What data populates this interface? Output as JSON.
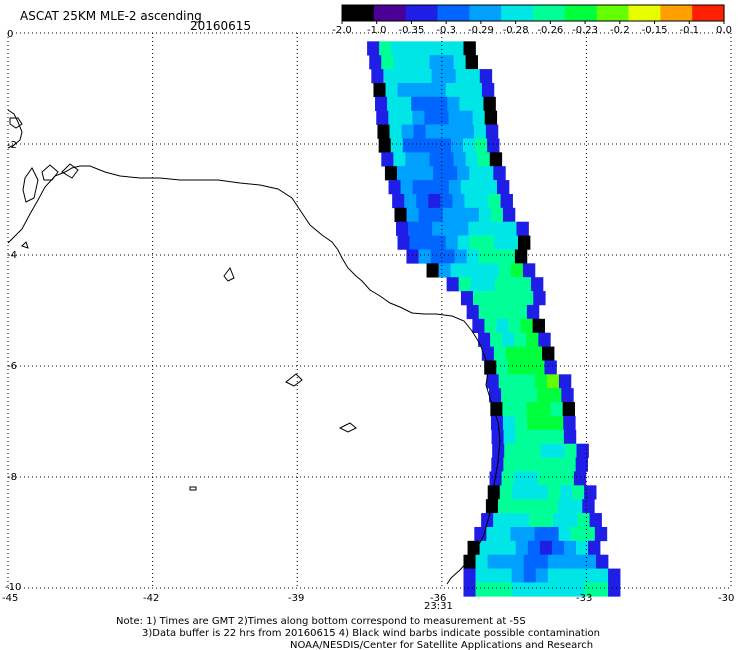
{
  "product_title": "ASCAT 25KM MLE-2 ascending",
  "date": "20160615",
  "colorbar": {
    "labels": [
      "-2.0",
      "-1.0",
      "-0.35",
      "-0.3",
      "-0.29",
      "-0.28",
      "-0.26",
      "-0.23",
      "-0.2",
      "-0.15",
      "-0.1",
      "0.0"
    ],
    "colors": [
      "#000000",
      "#4b0096",
      "#1e1ee6",
      "#0066ff",
      "#00a0ff",
      "#00e6e6",
      "#00ff96",
      "#00ff3c",
      "#64ff00",
      "#e6ff00",
      "#ffa000",
      "#ff2000"
    ]
  },
  "axes": {
    "lon_ticks": [
      "-45",
      "-42",
      "-39",
      "-36",
      "-33",
      "-30"
    ],
    "lat_ticks": [
      "0",
      "-2",
      "-4",
      "-6",
      "-8",
      "-10"
    ],
    "time_label": "23:31",
    "time_label_color": "#cc0000"
  },
  "notes": {
    "line1": "Note: 1) Times are GMT 2)Times along bottom correspond to measurement at -5S",
    "line2": "3)Data buffer is 22 hrs from 20160615 4) Black wind barbs indicate possible contamination",
    "line3": "NOAA/NESDIS/Center for Satellite Applications and Research"
  },
  "map_data": {
    "projection": "equirectangular",
    "lon_range": [
      -45,
      -30
    ],
    "lat_range": [
      -10,
      0
    ],
    "grid": "dotted at every labeled tick",
    "swath_edges": [
      {
        "lat": -0.15,
        "lon_min": -37.55,
        "lon_max": -35.35
      },
      {
        "lat": -1.0,
        "lon_min": -37.4,
        "lon_max": -35.1
      },
      {
        "lat": -2.0,
        "lon_min": -37.3,
        "lon_max": -34.85
      },
      {
        "lat": -3.0,
        "lon_min": -37.0,
        "lon_max": -34.6
      },
      {
        "lat": -3.8,
        "lon_min": -36.9,
        "lon_max": -34.3
      },
      {
        "lat": -4.55,
        "lon_min": -35.65,
        "lon_max": -34.1
      },
      {
        "lat": -5.5,
        "lon_min": -35.2,
        "lon_max": -33.8
      },
      {
        "lat": -6.5,
        "lon_min": -35.0,
        "lon_max": -33.4
      },
      {
        "lat": -7.5,
        "lon_min": -34.95,
        "lon_max": -33.15
      },
      {
        "lat": -8.5,
        "lon_min": -35.1,
        "lon_max": -32.9
      },
      {
        "lat": -9.3,
        "lon_min": -35.55,
        "lon_max": -32.7
      },
      {
        "lat": -9.95,
        "lon_min": -35.55,
        "lon_max": -32.4
      }
    ],
    "value_scale": "colorbar index 0-11",
    "features": [
      {
        "name": "Low MLE band",
        "lat_range": [
          -0.2,
          -4.6
        ],
        "lon_center": -36.3,
        "level": 3
      },
      {
        "name": "Low MLE patch",
        "lat_range": [
          -8.7,
          -9.8
        ],
        "lon_center": -34.1,
        "level": 3
      },
      {
        "name": "High MLE region",
        "lat_range": [
          -3.0,
          -7.5
        ],
        "lon_center": -33.9,
        "level": 7
      }
    ]
  }
}
